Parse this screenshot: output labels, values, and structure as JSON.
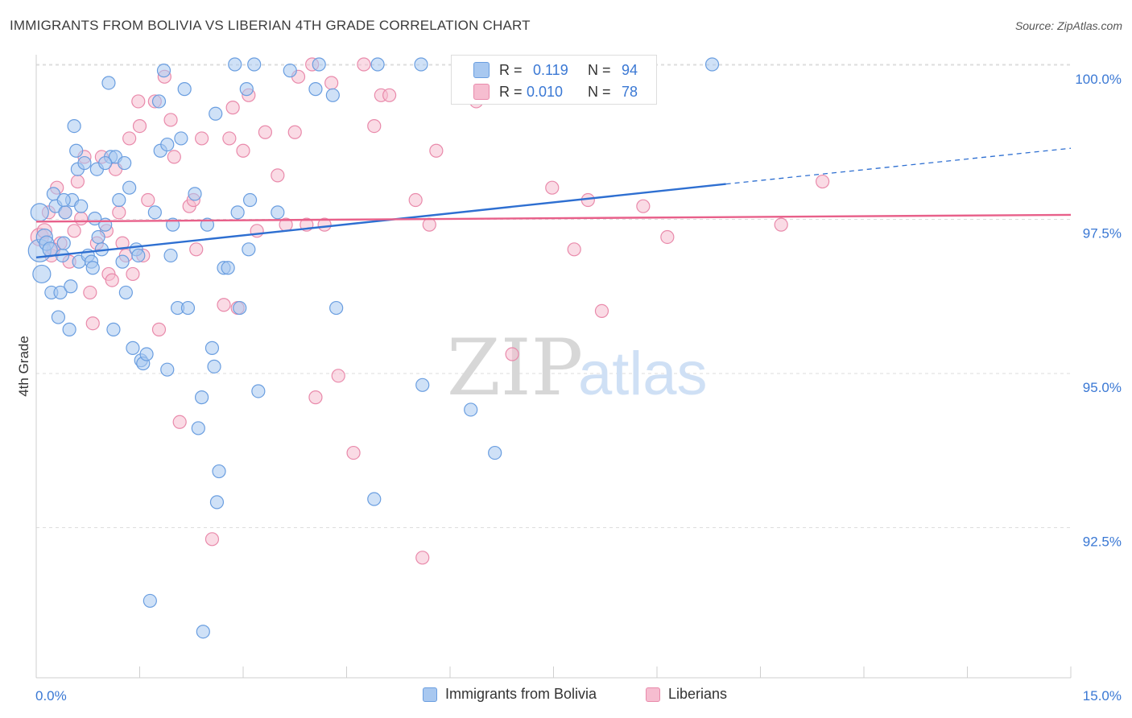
{
  "header": {
    "title": "IMMIGRANTS FROM BOLIVIA VS LIBERIAN 4TH GRADE CORRELATION CHART",
    "source": "Source: ZipAtlas.com"
  },
  "watermark": {
    "zip": "ZIP",
    "atlas": "atlas"
  },
  "stats": {
    "r_label": "R =",
    "n_label": "N =",
    "rows": [
      {
        "r": "0.119",
        "n": "94"
      },
      {
        "r": "0.010",
        "n": "78"
      }
    ]
  },
  "colors": {
    "blue_fill": "#a8c8f0",
    "blue_stroke": "#6a9ee0",
    "blue_line": "#2e6fd1",
    "pink_fill": "#f6bdd0",
    "pink_stroke": "#e98aab",
    "pink_line": "#e8608a",
    "axis_text": "#3a78d4",
    "grid": "#dddddd"
  },
  "chart_data": {
    "type": "scatter",
    "title": "IMMIGRANTS FROM BOLIVIA VS LIBERIAN 4TH GRADE CORRELATION CHART",
    "xlabel": "",
    "ylabel": "4th Grade",
    "xlim": [
      0,
      15
    ],
    "ylim": [
      90.0,
      100.4
    ],
    "x_tick_labels": [
      "0.0%",
      "15.0%"
    ],
    "y_ticks": [
      92.5,
      95.0,
      97.5,
      100.0
    ],
    "y_tick_labels": [
      "92.5%",
      "95.0%",
      "97.5%",
      "100.0%"
    ],
    "grid": "horizontal dashed",
    "legend_position": "bottom-center",
    "series": [
      {
        "name": "Immigrants from Bolivia",
        "color": "blue",
        "trend": {
          "x": [
            0.0,
            10.0
          ],
          "y": [
            96.87,
            98.06
          ],
          "dashed_to": [
            15.0,
            98.64
          ]
        },
        "points": [
          [
            0.05,
            97.6,
            22
          ],
          [
            0.05,
            96.98,
            28
          ],
          [
            0.08,
            96.6,
            22
          ],
          [
            0.12,
            97.2,
            20
          ],
          [
            0.15,
            97.1,
            18
          ],
          [
            0.2,
            97.0,
            18
          ],
          [
            0.22,
            96.3,
            16
          ],
          [
            0.25,
            97.9,
            16
          ],
          [
            0.28,
            97.7,
            16
          ],
          [
            0.32,
            95.9,
            16
          ],
          [
            0.35,
            96.3,
            16
          ],
          [
            0.38,
            96.9,
            16
          ],
          [
            0.4,
            97.1,
            16
          ],
          [
            0.42,
            97.6,
            16
          ],
          [
            0.48,
            95.7,
            16
          ],
          [
            0.5,
            96.4,
            16
          ],
          [
            0.52,
            97.8,
            16
          ],
          [
            0.55,
            99.0,
            16
          ],
          [
            0.58,
            98.6,
            16
          ],
          [
            0.6,
            98.3,
            16
          ],
          [
            0.62,
            96.8,
            16
          ],
          [
            0.65,
            97.7,
            16
          ],
          [
            0.7,
            98.4,
            16
          ],
          [
            0.75,
            96.9,
            16
          ],
          [
            0.8,
            96.8,
            16
          ],
          [
            0.82,
            96.7,
            16
          ],
          [
            0.85,
            97.5,
            16
          ],
          [
            0.88,
            98.3,
            16
          ],
          [
            0.9,
            97.2,
            16
          ],
          [
            0.95,
            97.0,
            16
          ],
          [
            1.0,
            97.4,
            16
          ],
          [
            1.05,
            99.7,
            16
          ],
          [
            1.08,
            98.5,
            16
          ],
          [
            1.12,
            95.7,
            16
          ],
          [
            1.15,
            98.5,
            16
          ],
          [
            1.2,
            97.8,
            16
          ],
          [
            1.25,
            96.8,
            16
          ],
          [
            1.28,
            98.4,
            16
          ],
          [
            1.3,
            96.3,
            16
          ],
          [
            1.35,
            98.0,
            16
          ],
          [
            1.4,
            95.4,
            16
          ],
          [
            1.45,
            97.0,
            16
          ],
          [
            1.48,
            96.9,
            16
          ],
          [
            1.52,
            95.2,
            16
          ],
          [
            1.55,
            95.15,
            16
          ],
          [
            1.6,
            95.3,
            16
          ],
          [
            1.65,
            91.3,
            16
          ],
          [
            1.72,
            97.6,
            16
          ],
          [
            1.78,
            99.4,
            16
          ],
          [
            1.8,
            98.6,
            16
          ],
          [
            1.85,
            99.9,
            16
          ],
          [
            1.9,
            95.05,
            16
          ],
          [
            1.95,
            96.9,
            16
          ],
          [
            1.98,
            97.4,
            16
          ],
          [
            2.05,
            96.05,
            16
          ],
          [
            2.1,
            98.8,
            16
          ],
          [
            2.15,
            99.6,
            16
          ],
          [
            2.2,
            96.05,
            16
          ],
          [
            2.3,
            97.9,
            16
          ],
          [
            2.35,
            94.1,
            16
          ],
          [
            2.4,
            94.6,
            16
          ],
          [
            2.42,
            90.8,
            16
          ],
          [
            2.48,
            97.4,
            16
          ],
          [
            2.55,
            95.4,
            16
          ],
          [
            2.58,
            95.1,
            16
          ],
          [
            2.62,
            92.9,
            16
          ],
          [
            2.65,
            93.4,
            16
          ],
          [
            2.72,
            96.7,
            16
          ],
          [
            2.78,
            96.7,
            16
          ],
          [
            2.88,
            100.0,
            16
          ],
          [
            2.92,
            97.6,
            16
          ],
          [
            2.95,
            96.05,
            16
          ],
          [
            3.05,
            99.6,
            16
          ],
          [
            3.08,
            97.0,
            16
          ],
          [
            3.1,
            97.8,
            16
          ],
          [
            3.16,
            100.0,
            16
          ],
          [
            3.22,
            94.7,
            16
          ],
          [
            3.5,
            97.6,
            16
          ],
          [
            3.68,
            99.9,
            16
          ],
          [
            4.05,
            99.6,
            16
          ],
          [
            4.1,
            100.0,
            16
          ],
          [
            4.3,
            99.5,
            16
          ],
          [
            4.35,
            96.05,
            16
          ],
          [
            4.9,
            92.95,
            16
          ],
          [
            4.95,
            100.0,
            16
          ],
          [
            5.58,
            100.0,
            16
          ],
          [
            5.6,
            94.8,
            16
          ],
          [
            6.3,
            94.4,
            16
          ],
          [
            6.65,
            93.7,
            16
          ],
          [
            9.8,
            100.0,
            16
          ],
          [
            1.0,
            98.4,
            16
          ],
          [
            0.4,
            97.8,
            16
          ],
          [
            1.9,
            98.7,
            16
          ],
          [
            2.6,
            99.2,
            16
          ]
        ]
      },
      {
        "name": "Liberians",
        "color": "pink",
        "trend": {
          "x": [
            0.0,
            15.0
          ],
          "y": [
            97.45,
            97.56
          ]
        },
        "points": [
          [
            0.05,
            97.2,
            22
          ],
          [
            0.12,
            97.3,
            18
          ],
          [
            0.18,
            97.6,
            16
          ],
          [
            0.22,
            96.9,
            16
          ],
          [
            0.3,
            98.0,
            16
          ],
          [
            0.35,
            97.1,
            16
          ],
          [
            0.42,
            97.6,
            16
          ],
          [
            0.48,
            96.8,
            16
          ],
          [
            0.55,
            97.3,
            16
          ],
          [
            0.6,
            98.1,
            16
          ],
          [
            0.65,
            97.5,
            16
          ],
          [
            0.7,
            98.5,
            16
          ],
          [
            0.78,
            96.3,
            16
          ],
          [
            0.82,
            95.8,
            16
          ],
          [
            0.88,
            97.1,
            16
          ],
          [
            0.95,
            98.5,
            16
          ],
          [
            1.02,
            97.3,
            16
          ],
          [
            1.05,
            96.6,
            16
          ],
          [
            1.1,
            96.5,
            16
          ],
          [
            1.15,
            98.3,
            16
          ],
          [
            1.2,
            97.6,
            16
          ],
          [
            1.25,
            97.1,
            16
          ],
          [
            1.3,
            96.9,
            16
          ],
          [
            1.35,
            98.8,
            16
          ],
          [
            1.4,
            96.6,
            16
          ],
          [
            1.48,
            99.4,
            16
          ],
          [
            1.55,
            96.9,
            16
          ],
          [
            1.62,
            97.8,
            16
          ],
          [
            1.72,
            99.4,
            16
          ],
          [
            1.78,
            95.7,
            16
          ],
          [
            1.86,
            99.8,
            16
          ],
          [
            1.95,
            99.1,
            16
          ],
          [
            2.0,
            98.5,
            16
          ],
          [
            2.08,
            94.2,
            16
          ],
          [
            2.22,
            97.7,
            16
          ],
          [
            2.28,
            97.8,
            16
          ],
          [
            2.32,
            97.0,
            16
          ],
          [
            2.4,
            98.8,
            16
          ],
          [
            2.55,
            92.3,
            16
          ],
          [
            2.72,
            96.1,
            16
          ],
          [
            2.8,
            98.8,
            16
          ],
          [
            2.85,
            99.3,
            16
          ],
          [
            2.92,
            96.05,
            16
          ],
          [
            3.0,
            98.6,
            16
          ],
          [
            3.08,
            99.5,
            16
          ],
          [
            3.2,
            97.3,
            16
          ],
          [
            3.32,
            98.9,
            16
          ],
          [
            3.5,
            98.2,
            16
          ],
          [
            3.62,
            97.4,
            16
          ],
          [
            3.75,
            98.9,
            16
          ],
          [
            3.92,
            97.4,
            16
          ],
          [
            4.0,
            100.0,
            16
          ],
          [
            4.05,
            94.6,
            16
          ],
          [
            4.18,
            97.4,
            16
          ],
          [
            4.28,
            99.7,
            16
          ],
          [
            4.38,
            94.95,
            16
          ],
          [
            4.6,
            93.7,
            16
          ],
          [
            4.75,
            100.0,
            16
          ],
          [
            4.9,
            99.0,
            16
          ],
          [
            5.0,
            99.5,
            16
          ],
          [
            5.12,
            99.5,
            16
          ],
          [
            5.5,
            97.8,
            16
          ],
          [
            5.6,
            92.0,
            16
          ],
          [
            5.7,
            97.4,
            16
          ],
          [
            5.8,
            98.6,
            16
          ],
          [
            6.38,
            99.4,
            16
          ],
          [
            6.9,
            95.3,
            16
          ],
          [
            7.48,
            98.0,
            16
          ],
          [
            7.8,
            97.0,
            16
          ],
          [
            8.0,
            97.8,
            16
          ],
          [
            8.2,
            96.0,
            16
          ],
          [
            8.8,
            97.7,
            16
          ],
          [
            9.15,
            97.2,
            16
          ],
          [
            10.8,
            97.4,
            16
          ],
          [
            11.4,
            98.1,
            16
          ],
          [
            1.5,
            99.0,
            16
          ],
          [
            0.25,
            97.0,
            16
          ],
          [
            3.8,
            99.8,
            16
          ]
        ]
      }
    ]
  },
  "legend": {
    "items": [
      {
        "label": "Immigrants from Bolivia"
      },
      {
        "label": "Liberians"
      }
    ]
  }
}
